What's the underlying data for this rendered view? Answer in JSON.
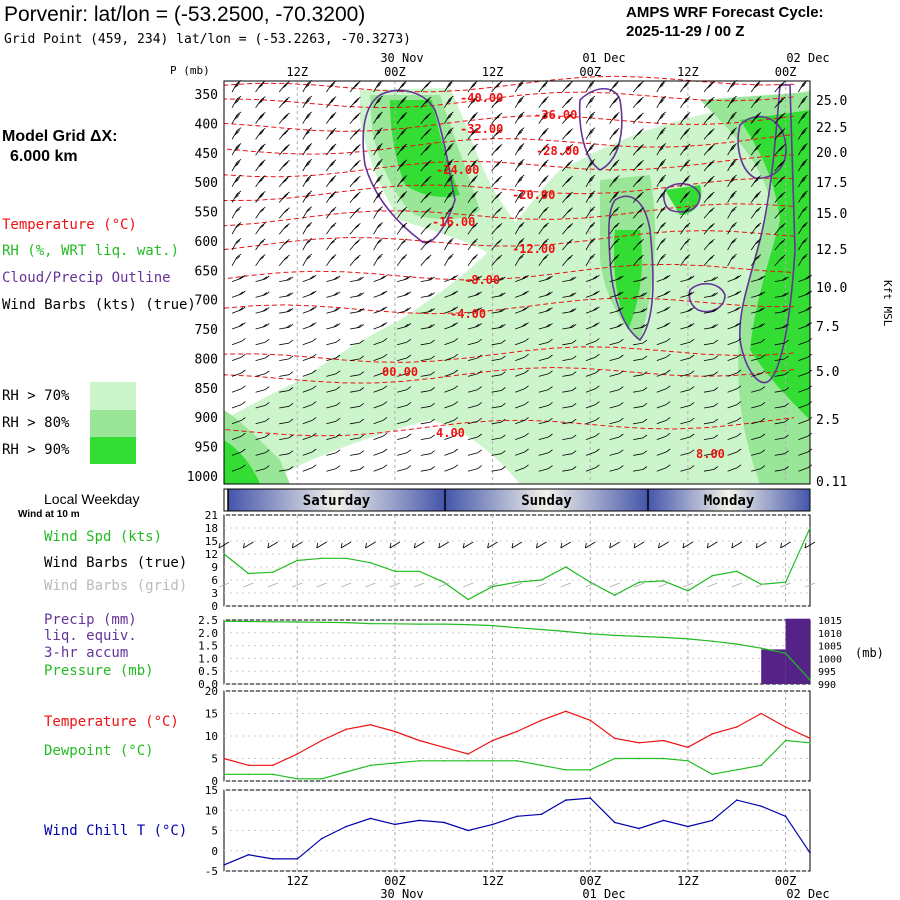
{
  "header": {
    "title": "Porvenir:  lat/lon = (-53.2500, -70.3200)",
    "subtitle": "Grid Point (459, 234) lat/lon = (-53.2263, -70.3273)",
    "cycle_label": "AMPS WRF Forecast Cycle:",
    "cycle_value": "2025-11-29 / 00  Z"
  },
  "legend": {
    "model_grid": "Model Grid ΔX:",
    "model_grid_value": "6.000 km",
    "temperature": "Temperature (°C)",
    "rh": "RH (%, WRT liq. wat.)",
    "cloud": "Cloud/Precip Outline",
    "wind_barbs": "Wind Barbs (kts) (true)",
    "rh70": "RH > 70%",
    "rh80": "RH > 80%",
    "rh90": "RH > 90%"
  },
  "colors": {
    "rh70": "#ccf5cc",
    "rh80": "#99e699",
    "rh90": "#33dd33",
    "temp": "#ee1111",
    "cloud": "#663399",
    "green_line": "#22bb22",
    "red_line": "#ee1111",
    "blue_line": "#0000aa",
    "purple_bar": "#552288"
  },
  "chart_data": [
    {
      "type": "heatmap",
      "name": "sounding_cross_section",
      "ylabel_left": "P (mb)",
      "ylabel_right": "Kft MSL",
      "pressure_ticks": [
        "350",
        "400",
        "450",
        "500",
        "550",
        "600",
        "650",
        "700",
        "750",
        "800",
        "850",
        "900",
        "950",
        "1000"
      ],
      "height_ticks": [
        "25.0",
        "22.5",
        "20.0",
        "17.5",
        "15.0",
        "12.5",
        "10.0",
        "7.5",
        "5.0",
        "2.5",
        "0.11"
      ],
      "time_ticks_top": [
        "12Z",
        "00Z",
        "12Z",
        "00Z",
        "12Z",
        "00Z"
      ],
      "date_labels_top": [
        {
          "label": "30 Nov",
          "at": "00Z"
        },
        {
          "label": "01 Dec",
          "at": "00Z"
        },
        {
          "label": "02 Dec",
          "at": "00Z"
        }
      ],
      "temperature_contour_labels": [
        "-40.00",
        "-36.00",
        "-32.00",
        "-28.00",
        "-24.00",
        "-20.00",
        "-16.00",
        "-12.00",
        "-8.00",
        "-4.00",
        "00.00",
        "4.00",
        "8.00"
      ]
    },
    {
      "type": "bar",
      "name": "local_weekday",
      "title": "Local Weekday",
      "days": [
        "Saturday",
        "Sunday",
        "Monday"
      ]
    },
    {
      "type": "line",
      "name": "surface_wind",
      "note": "Wind at 10 m",
      "series_labels": [
        "Wind Spd (kts)",
        "Wind Barbs (true)",
        "Wind Barbs (grid)"
      ],
      "yticks": [
        "21",
        "18",
        "15",
        "12",
        "9",
        "6",
        "3",
        "0"
      ],
      "ylim": [
        0,
        21
      ],
      "x_hours": [
        0,
        3,
        6,
        9,
        12,
        15,
        18,
        21,
        24,
        27,
        30,
        33,
        36,
        39,
        42,
        45,
        48,
        51,
        54,
        57,
        60,
        63,
        66,
        69,
        72
      ],
      "series": [
        {
          "name": "Wind Spd (kts)",
          "values": [
            12,
            7.5,
            7.8,
            10.5,
            11,
            11,
            10,
            8,
            8,
            5.5,
            1.5,
            4.5,
            5.5,
            6,
            9,
            5.5,
            2.5,
            5.5,
            5.8,
            3.5,
            7,
            8,
            5,
            5.5,
            18
          ]
        }
      ]
    },
    {
      "type": "bar",
      "name": "precip_pressure",
      "series_labels": [
        "Precip (mm)",
        "liq. equiv.",
        "3-hr accum",
        "Pressure (mb)"
      ],
      "left_ticks": [
        "2.5",
        "2.0",
        "1.5",
        "1.0",
        "0.5",
        "0.0"
      ],
      "right_ticks": [
        "1015",
        "1010",
        "1005",
        "1000",
        "995",
        "990"
      ],
      "right_unit": "(mb)",
      "x_hours": [
        0,
        3,
        6,
        9,
        12,
        15,
        18,
        21,
        24,
        27,
        30,
        33,
        36,
        39,
        42,
        45,
        48,
        51,
        54,
        57,
        60,
        63,
        66,
        69,
        72
      ],
      "series": [
        {
          "name": "Pressure (mb)",
          "values": [
            1014.5,
            1014.4,
            1014.3,
            1014.2,
            1014.1,
            1014,
            1013.6,
            1013.5,
            1013.4,
            1013.4,
            1013.2,
            1012.8,
            1012,
            1011.3,
            1010.5,
            1009.6,
            1009,
            1008.6,
            1008.2,
            1007.6,
            1006.7,
            1005.6,
            1004,
            1002,
            991.6
          ]
        },
        {
          "name": "Precip (mm)",
          "values": [
            0,
            0,
            0,
            0,
            0,
            0,
            0,
            0,
            0,
            0,
            0,
            0,
            0,
            0,
            0,
            0,
            0,
            0,
            0,
            0,
            0,
            0,
            0,
            1.35,
            2.55
          ]
        }
      ]
    },
    {
      "type": "line",
      "name": "temperature_dewpoint",
      "series_labels": [
        "Temperature (°C)",
        "Dewpoint (°C)"
      ],
      "yticks": [
        "20",
        "15",
        "10",
        "5",
        "0"
      ],
      "ylim": [
        0,
        20
      ],
      "x_hours": [
        0,
        3,
        6,
        9,
        12,
        15,
        18,
        21,
        24,
        27,
        30,
        33,
        36,
        39,
        42,
        45,
        48,
        51,
        54,
        57,
        60,
        63,
        66,
        69,
        72
      ],
      "series": [
        {
          "name": "Temperature (°C)",
          "values": [
            5,
            3.5,
            3.5,
            6,
            9,
            11.5,
            12.5,
            11,
            9,
            7.5,
            6,
            9,
            11,
            13.5,
            15.5,
            13.5,
            9.5,
            8.5,
            9,
            7.5,
            10.5,
            12,
            15,
            12,
            9.5
          ]
        },
        {
          "name": "Dewpoint (°C)",
          "values": [
            1.5,
            1.5,
            1.5,
            0.5,
            0.5,
            2,
            3.5,
            4,
            4.5,
            4.5,
            4.5,
            4.5,
            4.5,
            3.5,
            2.5,
            2.5,
            5,
            5,
            5,
            4.5,
            1.5,
            2.5,
            3.5,
            9,
            8.5
          ]
        }
      ]
    },
    {
      "type": "line",
      "name": "wind_chill",
      "series_labels": [
        "Wind Chill T (°C)"
      ],
      "yticks": [
        "15",
        "10",
        "5",
        "0",
        "-5"
      ],
      "ylim": [
        -5,
        15
      ],
      "time_ticks_bottom": [
        "12Z",
        "00Z",
        "12Z",
        "00Z",
        "12Z",
        "00Z"
      ],
      "date_labels_bottom": [
        "30 Nov",
        "01 Dec",
        "02 Dec"
      ],
      "x_hours": [
        0,
        3,
        6,
        9,
        12,
        15,
        18,
        21,
        24,
        27,
        30,
        33,
        36,
        39,
        42,
        45,
        48,
        51,
        54,
        57,
        60,
        63,
        66,
        69,
        72
      ],
      "series": [
        {
          "name": "Wind Chill T (°C)",
          "values": [
            -3.5,
            -1,
            -2,
            -2,
            3,
            6,
            8,
            6.5,
            7.5,
            7,
            5,
            6.5,
            8.5,
            9,
            12.5,
            13,
            7,
            5.5,
            7.5,
            6,
            7.5,
            12.5,
            11,
            8.5,
            -0.5
          ]
        }
      ]
    }
  ]
}
